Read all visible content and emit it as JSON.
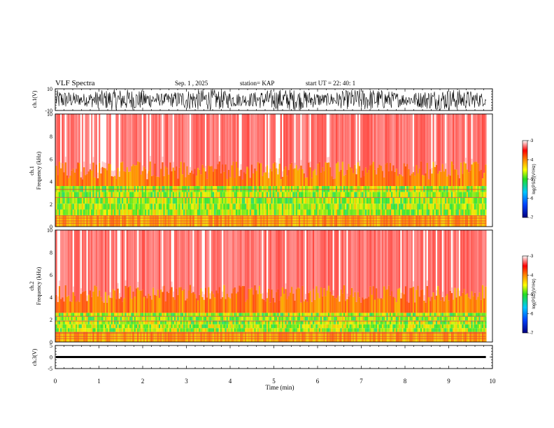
{
  "header": {
    "title": "VLF Spectra",
    "date": "Sep. 1 , 2025",
    "station": "station= KAP",
    "start": "start UT =  22: 40: 1"
  },
  "chart_data": [
    {
      "type": "line",
      "name": "ch1-waveform",
      "ylabel": "ch.1(V)",
      "ylim": [
        -10,
        10
      ],
      "ytick_labels": [
        "10",
        "-10"
      ],
      "xlim": [
        0,
        10
      ],
      "data_end_min": 9.85,
      "series": [
        {
          "name": "ch.1",
          "description_range": [
            -10,
            10
          ]
        }
      ]
    },
    {
      "type": "heatmap",
      "name": "ch1-spectrogram",
      "ylabel_top": "ch.1",
      "ylabel": "Frequency  (kHz)",
      "ylim": [
        0,
        10
      ],
      "ytick_labels": [
        "10",
        "8",
        "6",
        "4",
        "2",
        "0"
      ],
      "xlim": [
        0,
        10
      ],
      "data_end_min": 9.85,
      "dense_band_khz": [
        1.0,
        3.6
      ],
      "red_fringe_khz": 5.0,
      "colorbar": {
        "label": "log(PSD)(V²/Hz)",
        "range": [
          -7,
          -3
        ],
        "tick_labels": [
          "-3",
          "-4",
          "-5",
          "-6",
          "-7"
        ]
      }
    },
    {
      "type": "heatmap",
      "name": "ch2-spectrogram",
      "ylabel_top": "ch.2",
      "ylabel": "Frequency  (kHz)",
      "ylim": [
        0,
        10
      ],
      "ytick_labels": [
        "10",
        "8",
        "6",
        "4",
        "2",
        "0"
      ],
      "xlim": [
        0,
        10
      ],
      "data_end_min": 9.85,
      "dense_band_khz": [
        0.9,
        2.6
      ],
      "red_fringe_khz": 4.3,
      "colorbar": {
        "label": "log(PSD)(V²/Hz)",
        "range": [
          -7,
          -3
        ],
        "tick_labels": [
          "-3",
          "-4",
          "-5",
          "-6",
          "-7"
        ]
      }
    },
    {
      "type": "line",
      "name": "ch3-waveform",
      "ylabel": "ch.3(V)",
      "ylim": [
        -5,
        5
      ],
      "ytick_labels": [
        "5",
        "0",
        "-5"
      ],
      "xlim": [
        0,
        10
      ],
      "data_end_min": 9.85,
      "series": [
        {
          "name": "ch.3",
          "description_range": [
            -0.3,
            0.3
          ]
        }
      ]
    }
  ],
  "xaxis": {
    "label": "Time  (min)",
    "tick_labels": [
      "0",
      "1",
      "2",
      "3",
      "4",
      "5",
      "6",
      "7",
      "8",
      "9",
      "10"
    ]
  },
  "colors": {
    "axis": "#000000",
    "trace": "#000000",
    "colormap": [
      "#00007f",
      "#0044ff",
      "#00c8ff",
      "#22dd22",
      "#ffff00",
      "#ff8800",
      "#ff0000",
      "#ffffff"
    ]
  }
}
